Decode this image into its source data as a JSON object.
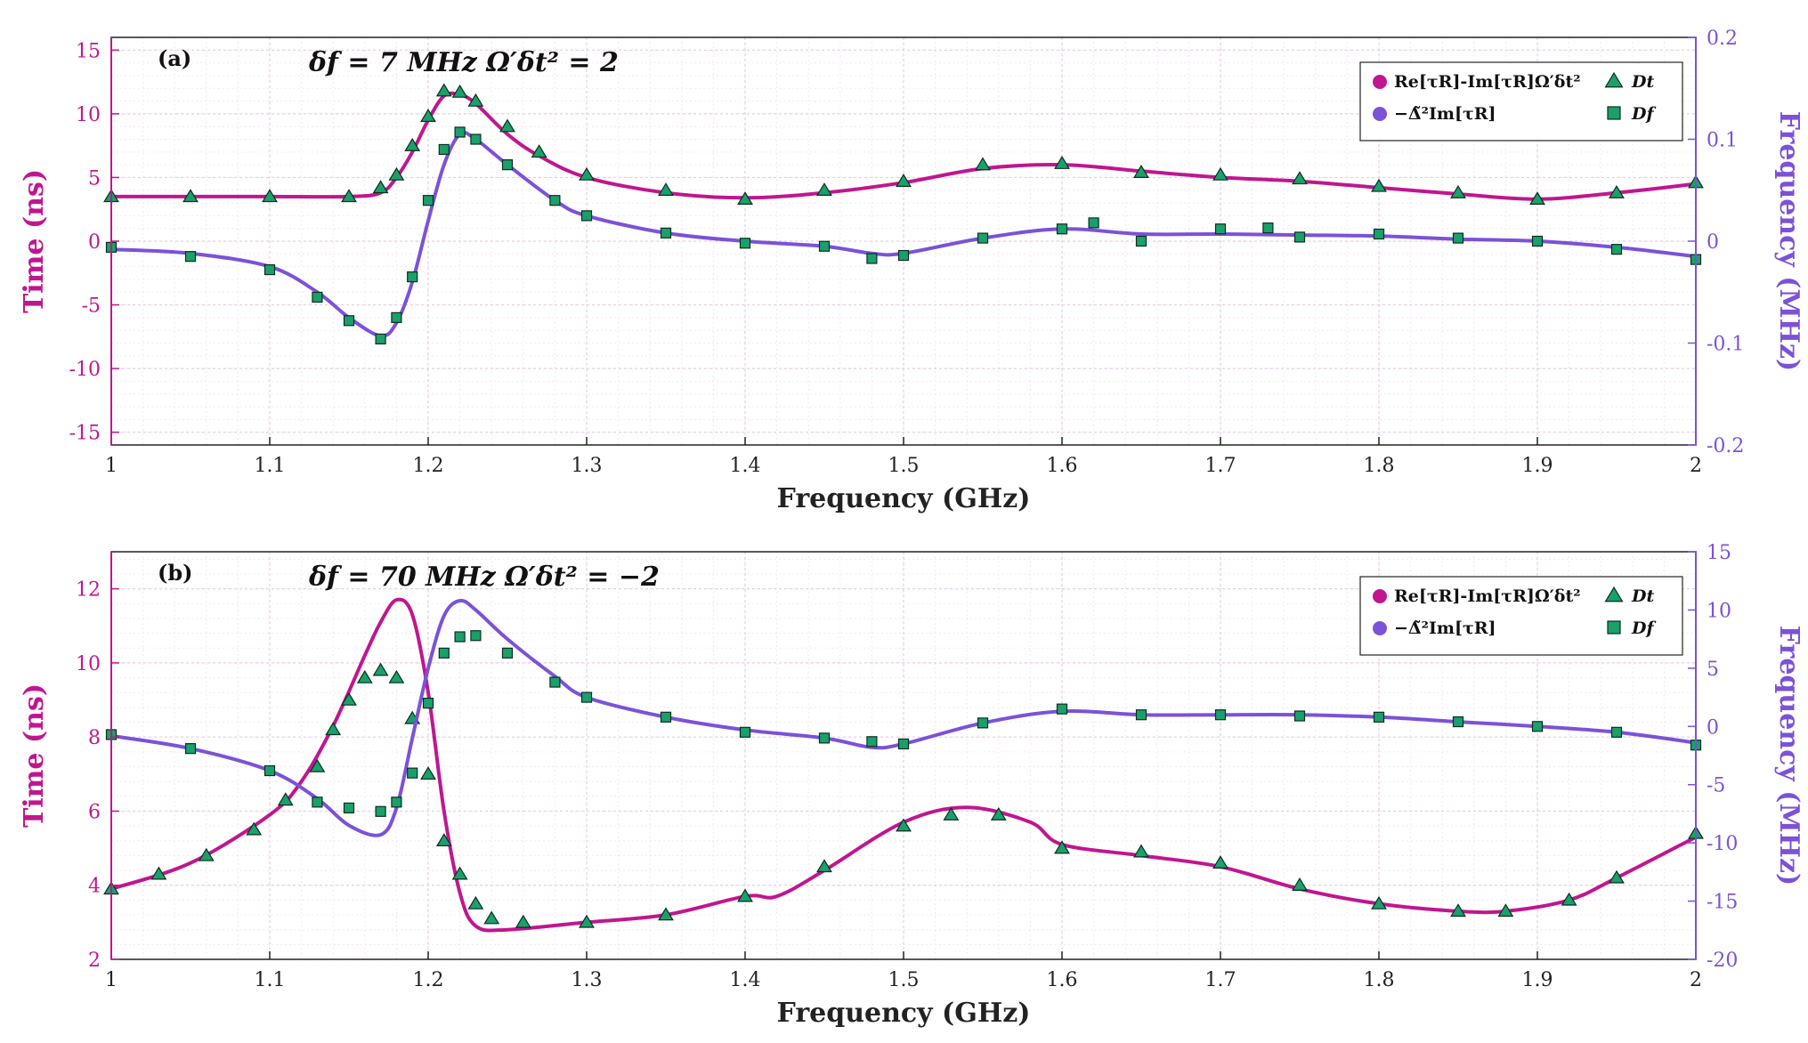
{
  "colors": {
    "magenta": "#c0168f",
    "violet": "#7b52d8",
    "marker_fill": "#1aa06a",
    "marker_edge": "#0b2e1e",
    "grid_major": "#e6cfe2",
    "grid_minor": "#f4e8f2"
  },
  "chart_data": [
    {
      "type": "line",
      "panel_label": "(a)",
      "params_text": "δf = 7 MHz   Ω′δt² = 2",
      "xlabel": "Frequency (GHz)",
      "ylabel": "Time (ns)",
      "ylabel_right": "Frequency (MHz)",
      "xlim": [
        1,
        2
      ],
      "ylim": [
        -16,
        16
      ],
      "ylim_right": [
        -0.2,
        0.2
      ],
      "xticks": [
        "1",
        "1.1",
        "1.2",
        "1.3",
        "1.4",
        "1.5",
        "1.6",
        "1.7",
        "1.8",
        "1.9",
        "2"
      ],
      "yticks": [
        "-15",
        "-10",
        "-5",
        "0",
        "5",
        "10",
        "15"
      ],
      "yticks_right": [
        "-0.2",
        "-0.1",
        "0",
        "0.1",
        "0.2"
      ],
      "legend": {
        "position": "top-right",
        "entries": [
          "Re[τR]-Im[τR]Ω′δt²",
          "Dt",
          "−Δ̃²Im[τR]",
          "Df"
        ]
      },
      "series": [
        {
          "name": "Re[τR]-Im[τR]Ω′δt²",
          "axis": "left",
          "style": "line",
          "color": "#c0168f",
          "x": [
            1.0,
            1.05,
            1.1,
            1.15,
            1.17,
            1.18,
            1.19,
            1.2,
            1.21,
            1.22,
            1.23,
            1.25,
            1.27,
            1.3,
            1.35,
            1.4,
            1.45,
            1.5,
            1.55,
            1.6,
            1.65,
            1.7,
            1.75,
            1.8,
            1.85,
            1.9,
            1.95,
            2.0
          ],
          "y": [
            3.5,
            3.5,
            3.5,
            3.5,
            3.8,
            5.0,
            7.0,
            9.5,
            11.4,
            11.5,
            10.8,
            8.4,
            6.7,
            5.0,
            3.8,
            3.4,
            3.8,
            4.6,
            5.7,
            6.0,
            5.5,
            5.0,
            4.7,
            4.2,
            3.7,
            3.3,
            3.8,
            4.5
          ]
        },
        {
          "name": "Dt",
          "axis": "left",
          "style": "triangle",
          "x": [
            1.0,
            1.05,
            1.1,
            1.15,
            1.17,
            1.18,
            1.19,
            1.2,
            1.21,
            1.22,
            1.23,
            1.25,
            1.27,
            1.3,
            1.35,
            1.4,
            1.45,
            1.5,
            1.55,
            1.6,
            1.65,
            1.7,
            1.75,
            1.8,
            1.85,
            1.9,
            1.95,
            2.0
          ],
          "y": [
            3.5,
            3.5,
            3.5,
            3.5,
            4.2,
            5.2,
            7.5,
            9.8,
            11.8,
            11.7,
            11.0,
            9.0,
            7.0,
            5.2,
            4.0,
            3.3,
            4.0,
            4.7,
            6.0,
            6.1,
            5.4,
            5.2,
            4.9,
            4.3,
            3.8,
            3.3,
            3.8,
            4.6
          ]
        },
        {
          "name": "−Δ̃²Im[τR]",
          "axis": "right",
          "style": "line",
          "color": "#7b52d8",
          "x": [
            1.0,
            1.05,
            1.1,
            1.13,
            1.15,
            1.17,
            1.18,
            1.19,
            1.2,
            1.21,
            1.22,
            1.23,
            1.25,
            1.28,
            1.3,
            1.35,
            1.4,
            1.45,
            1.48,
            1.5,
            1.55,
            1.6,
            1.65,
            1.7,
            1.75,
            1.8,
            1.85,
            1.9,
            1.95,
            2.0
          ],
          "y": [
            -0.008,
            -0.012,
            -0.025,
            -0.05,
            -0.075,
            -0.093,
            -0.08,
            -0.04,
            0.02,
            0.075,
            0.105,
            0.1,
            0.075,
            0.04,
            0.025,
            0.008,
            0.0,
            -0.005,
            -0.012,
            -0.012,
            0.003,
            0.012,
            0.007,
            0.007,
            0.006,
            0.005,
            0.002,
            0.0,
            -0.006,
            -0.015
          ]
        },
        {
          "name": "Df",
          "axis": "right",
          "style": "square",
          "x": [
            1.0,
            1.05,
            1.1,
            1.13,
            1.15,
            1.17,
            1.18,
            1.19,
            1.2,
            1.21,
            1.22,
            1.23,
            1.25,
            1.28,
            1.3,
            1.35,
            1.4,
            1.45,
            1.48,
            1.5,
            1.55,
            1.6,
            1.62,
            1.65,
            1.7,
            1.73,
            1.75,
            1.8,
            1.85,
            1.9,
            1.95,
            2.0
          ],
          "y": [
            -0.006,
            -0.015,
            -0.028,
            -0.055,
            -0.078,
            -0.096,
            -0.075,
            -0.035,
            0.04,
            0.09,
            0.107,
            0.1,
            0.075,
            0.04,
            0.025,
            0.008,
            -0.002,
            -0.005,
            -0.017,
            -0.014,
            0.003,
            0.012,
            0.018,
            0.0,
            0.012,
            0.013,
            0.004,
            0.007,
            0.003,
            0.0,
            -0.008,
            -0.018
          ]
        }
      ]
    },
    {
      "type": "line",
      "panel_label": "(b)",
      "params_text": "δf = 70 MHz   Ω′δt² = −2",
      "xlabel": "Frequency (GHz)",
      "ylabel": "Time (ns)",
      "ylabel_right": "Frequency (MHz)",
      "xlim": [
        1,
        2
      ],
      "ylim": [
        2,
        13
      ],
      "ylim_right": [
        -20,
        15
      ],
      "xticks": [
        "1",
        "1.1",
        "1.2",
        "1.3",
        "1.4",
        "1.5",
        "1.6",
        "1.7",
        "1.8",
        "1.9",
        "2"
      ],
      "yticks": [
        "2",
        "4",
        "6",
        "8",
        "10",
        "12"
      ],
      "yticks_right": [
        "-20",
        "-15",
        "-10",
        "-5",
        "0",
        "5",
        "10",
        "15"
      ],
      "legend": {
        "position": "top-right",
        "entries": [
          "Re[τR]-Im[τR]Ω′δt²",
          "Dt",
          "−Δ̃²Im[τR]",
          "Df"
        ]
      },
      "series": [
        {
          "name": "Re[τR]-Im[τR]Ω′δt²",
          "axis": "left",
          "style": "line",
          "color": "#c0168f",
          "x": [
            1.0,
            1.05,
            1.1,
            1.12,
            1.14,
            1.16,
            1.17,
            1.18,
            1.19,
            1.2,
            1.21,
            1.22,
            1.23,
            1.25,
            1.3,
            1.35,
            1.4,
            1.42,
            1.45,
            1.5,
            1.54,
            1.58,
            1.6,
            1.65,
            1.7,
            1.75,
            1.8,
            1.85,
            1.88,
            1.92,
            1.95,
            2.0
          ],
          "y": [
            3.9,
            4.6,
            5.9,
            6.8,
            8.3,
            10.2,
            11.1,
            11.7,
            11.3,
            9.2,
            6.0,
            3.8,
            2.9,
            2.8,
            3.0,
            3.2,
            3.7,
            3.7,
            4.4,
            5.7,
            6.1,
            5.7,
            5.1,
            4.8,
            4.5,
            3.9,
            3.5,
            3.3,
            3.3,
            3.6,
            4.2,
            5.3
          ]
        },
        {
          "name": "Dt",
          "axis": "left",
          "style": "triangle",
          "x": [
            1.0,
            1.03,
            1.06,
            1.09,
            1.11,
            1.13,
            1.14,
            1.15,
            1.16,
            1.17,
            1.18,
            1.19,
            1.2,
            1.21,
            1.22,
            1.23,
            1.24,
            1.26,
            1.3,
            1.35,
            1.4,
            1.45,
            1.5,
            1.53,
            1.56,
            1.6,
            1.65,
            1.7,
            1.75,
            1.8,
            1.85,
            1.88,
            1.92,
            1.95,
            2.0
          ],
          "y": [
            3.9,
            4.3,
            4.8,
            5.5,
            6.3,
            7.2,
            8.2,
            9.0,
            9.6,
            9.8,
            9.6,
            8.5,
            7.0,
            5.2,
            4.3,
            3.5,
            3.1,
            3.0,
            3.0,
            3.2,
            3.7,
            4.5,
            5.6,
            5.9,
            5.9,
            5.0,
            4.9,
            4.6,
            4.0,
            3.5,
            3.3,
            3.3,
            3.6,
            4.2,
            5.4
          ]
        },
        {
          "name": "−Δ̃²Im[τR]",
          "axis": "right",
          "style": "line",
          "color": "#7b52d8",
          "x": [
            1.0,
            1.05,
            1.1,
            1.13,
            1.15,
            1.17,
            1.18,
            1.19,
            1.2,
            1.21,
            1.22,
            1.23,
            1.25,
            1.28,
            1.3,
            1.35,
            1.4,
            1.45,
            1.48,
            1.5,
            1.55,
            1.6,
            1.65,
            1.7,
            1.75,
            1.8,
            1.85,
            1.9,
            1.95,
            2.0
          ],
          "y": [
            -0.8,
            -1.9,
            -3.8,
            -6.2,
            -8.5,
            -9.3,
            -7.0,
            -1.0,
            5.0,
            9.5,
            10.8,
            10.0,
            7.5,
            4.3,
            2.5,
            0.8,
            -0.3,
            -1.0,
            -1.8,
            -1.5,
            0.3,
            1.3,
            1.0,
            1.0,
            1.0,
            0.8,
            0.4,
            0.0,
            -0.5,
            -1.4
          ]
        },
        {
          "name": "Df",
          "axis": "right",
          "style": "square",
          "x": [
            1.0,
            1.05,
            1.1,
            1.13,
            1.15,
            1.17,
            1.18,
            1.19,
            1.2,
            1.21,
            1.22,
            1.23,
            1.25,
            1.28,
            1.3,
            1.35,
            1.4,
            1.45,
            1.48,
            1.5,
            1.55,
            1.6,
            1.65,
            1.7,
            1.75,
            1.8,
            1.85,
            1.9,
            1.95,
            2.0
          ],
          "y": [
            -0.7,
            -1.9,
            -3.8,
            -6.5,
            -7.0,
            -7.3,
            -6.5,
            -4.0,
            2.0,
            6.3,
            7.7,
            7.8,
            6.3,
            3.8,
            2.5,
            0.8,
            -0.5,
            -1.0,
            -1.3,
            -1.5,
            0.3,
            1.5,
            1.0,
            1.0,
            0.9,
            0.8,
            0.4,
            0.0,
            -0.5,
            -1.6
          ]
        }
      ]
    }
  ]
}
